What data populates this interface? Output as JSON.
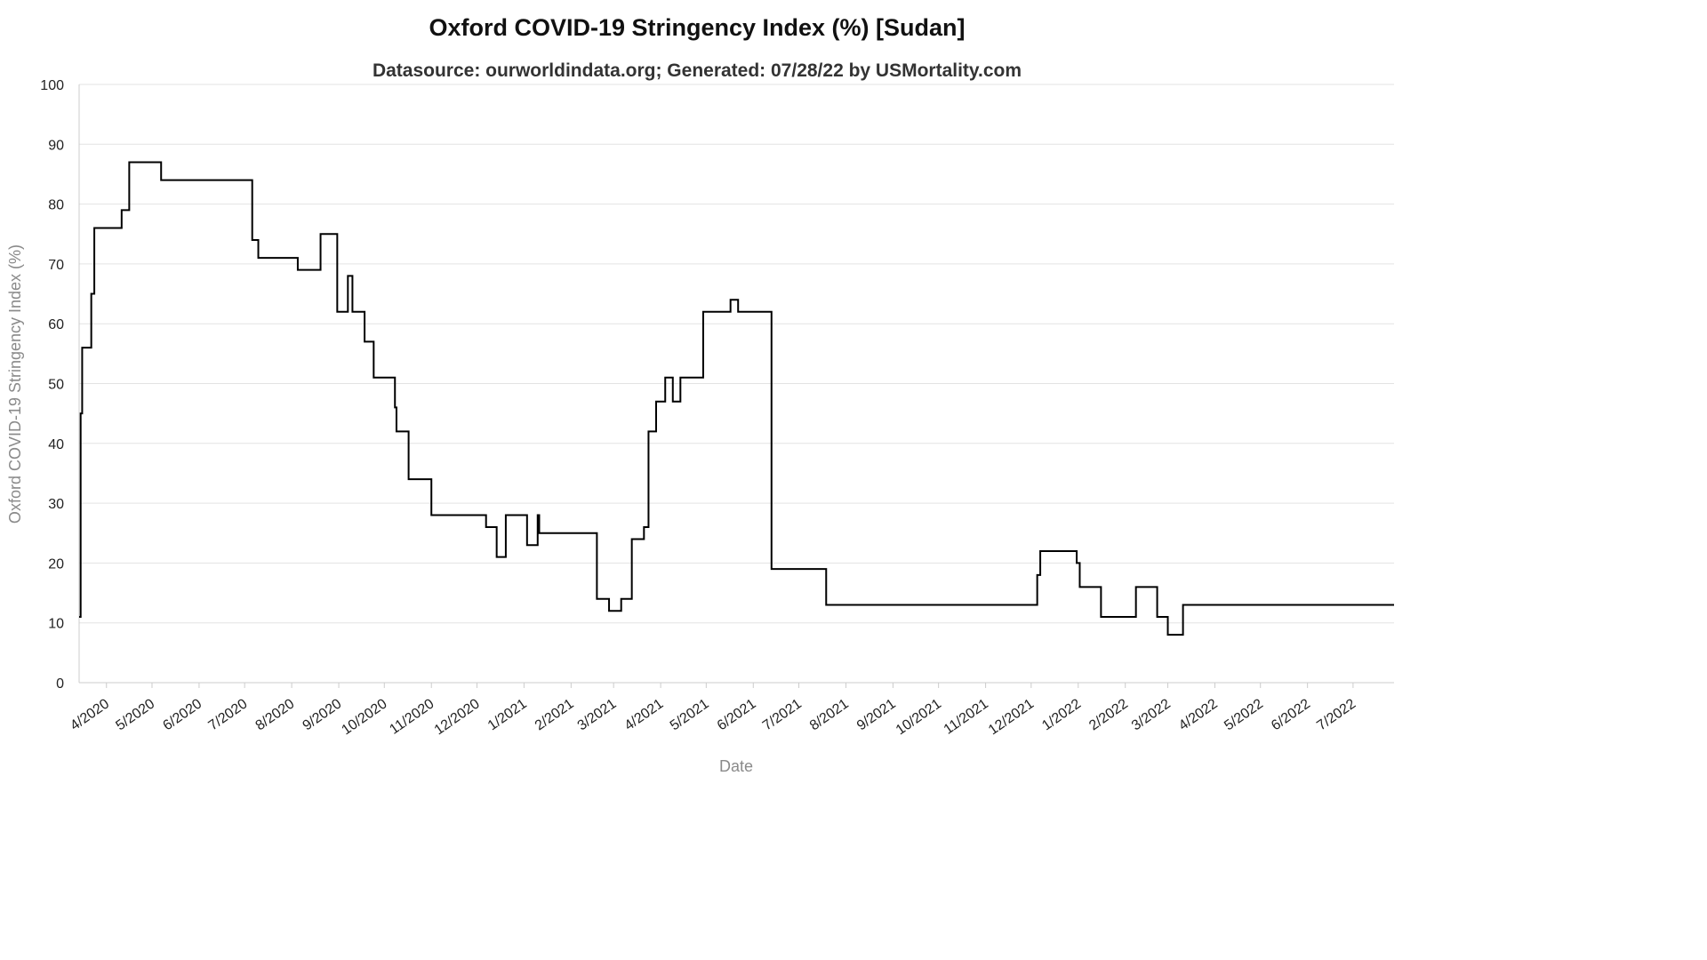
{
  "chart_data": {
    "type": "line",
    "title": "Oxford COVID-19 Stringency Index (%) [Sudan]",
    "subtitle": "Datasource: ourworldindata.org; Generated: 07/28/22 by USMortality.com",
    "xlabel": "Date",
    "ylabel": "Oxford COVID-19 Stringency Index (%)",
    "ylim": [
      0,
      100
    ],
    "yticks": [
      0,
      10,
      20,
      30,
      40,
      50,
      60,
      70,
      80,
      90,
      100
    ],
    "xlim": [
      "2020-03-14",
      "2022-07-28"
    ],
    "xtick_labels": [
      "4/2020",
      "5/2020",
      "6/2020",
      "7/2020",
      "8/2020",
      "9/2020",
      "10/2020",
      "11/2020",
      "12/2020",
      "1/2021",
      "2/2021",
      "3/2021",
      "4/2021",
      "5/2021",
      "6/2021",
      "7/2021",
      "8/2021",
      "9/2021",
      "10/2021",
      "11/2021",
      "12/2021",
      "1/2022",
      "2/2022",
      "3/2022",
      "4/2022",
      "5/2022",
      "6/2022",
      "7/2022"
    ],
    "xtick_dates": [
      "2020-04-01",
      "2020-05-01",
      "2020-06-01",
      "2020-07-01",
      "2020-08-01",
      "2020-09-01",
      "2020-10-01",
      "2020-11-01",
      "2020-12-01",
      "2021-01-01",
      "2021-02-01",
      "2021-03-01",
      "2021-04-01",
      "2021-05-01",
      "2021-06-01",
      "2021-07-01",
      "2021-08-01",
      "2021-09-01",
      "2021-10-01",
      "2021-11-01",
      "2021-12-01",
      "2022-01-01",
      "2022-02-01",
      "2022-03-01",
      "2022-04-01",
      "2022-05-01",
      "2022-06-01",
      "2022-07-01"
    ],
    "grid": true,
    "series": [
      {
        "color": "#000000",
        "step": true,
        "points": [
          [
            "2020-03-14",
            11
          ],
          [
            "2020-03-15",
            45
          ],
          [
            "2020-03-16",
            56
          ],
          [
            "2020-03-22",
            65
          ],
          [
            "2020-03-24",
            76
          ],
          [
            "2020-04-11",
            79
          ],
          [
            "2020-04-16",
            87
          ],
          [
            "2020-05-07",
            84
          ],
          [
            "2020-07-06",
            74
          ],
          [
            "2020-07-10",
            71
          ],
          [
            "2020-08-05",
            69
          ],
          [
            "2020-08-20",
            75
          ],
          [
            "2020-08-31",
            62
          ],
          [
            "2020-09-07",
            68
          ],
          [
            "2020-09-10",
            62
          ],
          [
            "2020-09-18",
            57
          ],
          [
            "2020-09-24",
            51
          ],
          [
            "2020-10-08",
            46
          ],
          [
            "2020-10-09",
            42
          ],
          [
            "2020-10-17",
            34
          ],
          [
            "2020-11-01",
            28
          ],
          [
            "2020-12-07",
            26
          ],
          [
            "2020-12-14",
            21
          ],
          [
            "2020-12-20",
            28
          ],
          [
            "2021-01-03",
            23
          ],
          [
            "2021-01-10",
            28
          ],
          [
            "2021-01-11",
            25
          ],
          [
            "2021-02-18",
            14
          ],
          [
            "2021-02-26",
            12
          ],
          [
            "2021-03-06",
            14
          ],
          [
            "2021-03-13",
            24
          ],
          [
            "2021-03-21",
            26
          ],
          [
            "2021-03-24",
            42
          ],
          [
            "2021-03-29",
            47
          ],
          [
            "2021-04-04",
            51
          ],
          [
            "2021-04-09",
            47
          ],
          [
            "2021-04-14",
            51
          ],
          [
            "2021-04-29",
            62
          ],
          [
            "2021-05-17",
            64
          ],
          [
            "2021-05-22",
            62
          ],
          [
            "2021-06-13",
            19
          ],
          [
            "2021-07-19",
            13
          ],
          [
            "2021-12-05",
            18
          ],
          [
            "2021-12-07",
            22
          ],
          [
            "2021-12-31",
            20
          ],
          [
            "2022-01-02",
            16
          ],
          [
            "2022-01-16",
            11
          ],
          [
            "2022-02-08",
            16
          ],
          [
            "2022-02-22",
            11
          ],
          [
            "2022-03-01",
            8
          ],
          [
            "2022-03-11",
            13
          ],
          [
            "2022-07-28",
            13
          ]
        ]
      }
    ]
  }
}
